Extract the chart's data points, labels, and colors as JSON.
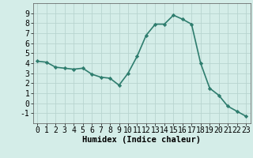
{
  "x": [
    0,
    1,
    2,
    3,
    4,
    5,
    6,
    7,
    8,
    9,
    10,
    11,
    12,
    13,
    14,
    15,
    16,
    17,
    18,
    19,
    20,
    21,
    22,
    23
  ],
  "y": [
    4.2,
    4.1,
    3.6,
    3.5,
    3.4,
    3.5,
    2.9,
    2.6,
    2.5,
    1.8,
    3.0,
    4.7,
    6.8,
    7.9,
    7.9,
    8.8,
    8.4,
    7.9,
    4.0,
    1.5,
    0.8,
    -0.3,
    -0.8,
    -1.3
  ],
  "line_color": "#2e7d6e",
  "marker": "D",
  "marker_size": 2.2,
  "xlabel": "Humidex (Indice chaleur)",
  "xlim": [
    -0.5,
    23.5
  ],
  "ylim": [
    -2,
    10
  ],
  "yticks": [
    -1,
    0,
    1,
    2,
    3,
    4,
    5,
    6,
    7,
    8,
    9
  ],
  "xticks": [
    0,
    1,
    2,
    3,
    4,
    5,
    6,
    7,
    8,
    9,
    10,
    11,
    12,
    13,
    14,
    15,
    16,
    17,
    18,
    19,
    20,
    21,
    22,
    23
  ],
  "bg_color": "#d4ede8",
  "grid_color": "#b8d4cf",
  "xlabel_fontsize": 7.5,
  "tick_fontsize": 7,
  "line_width": 1.2
}
